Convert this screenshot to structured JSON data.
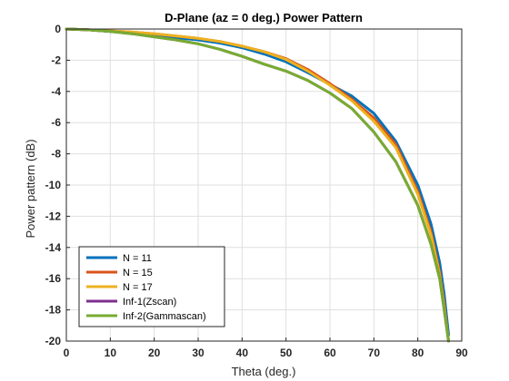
{
  "chart_data": {
    "type": "line",
    "title": "D-Plane (az = 0 deg.) Power Pattern",
    "xlabel": "Theta (deg.)",
    "ylabel": "Power pattern (dB)",
    "xlim": [
      0,
      90
    ],
    "ylim": [
      -20,
      0
    ],
    "xticks": [
      "0",
      "10",
      "20",
      "30",
      "40",
      "50",
      "60",
      "70",
      "80",
      "90"
    ],
    "yticks": [
      "0",
      "-2",
      "-4",
      "-6",
      "-8",
      "-10",
      "-12",
      "-14",
      "-16",
      "-18",
      "-20"
    ],
    "grid": true,
    "legend_position": "bottom-left",
    "series": [
      {
        "name": "N = 11",
        "color": "#0072BD",
        "x": [
          0,
          5,
          10,
          15,
          20,
          25,
          30,
          35,
          40,
          45,
          50,
          55,
          60,
          65,
          70,
          75,
          80,
          83,
          85,
          86,
          87
        ],
        "y": [
          0,
          -0.05,
          -0.15,
          -0.25,
          -0.4,
          -0.55,
          -0.7,
          -0.9,
          -1.2,
          -1.6,
          -2.1,
          -2.8,
          -3.55,
          -4.3,
          -5.4,
          -7.2,
          -10.0,
          -12.5,
          -15.0,
          -17.0,
          -19.6
        ]
      },
      {
        "name": "N = 15",
        "color": "#D95319",
        "x": [
          0,
          5,
          10,
          15,
          20,
          25,
          30,
          35,
          40,
          45,
          50,
          55,
          60,
          65,
          70,
          75,
          80,
          83,
          85,
          86,
          87
        ],
        "y": [
          0,
          -0.05,
          -0.12,
          -0.2,
          -0.3,
          -0.45,
          -0.6,
          -0.8,
          -1.1,
          -1.45,
          -1.9,
          -2.6,
          -3.5,
          -4.5,
          -5.7,
          -7.4,
          -10.4,
          -13.0,
          -15.6,
          -17.6,
          -20.0
        ]
      },
      {
        "name": "N = 17",
        "color": "#EDB120",
        "x": [
          0,
          5,
          10,
          15,
          20,
          25,
          30,
          35,
          40,
          45,
          50,
          55,
          60,
          65,
          70,
          75,
          80,
          83,
          85,
          86,
          87
        ],
        "y": [
          0,
          -0.05,
          -0.12,
          -0.2,
          -0.3,
          -0.45,
          -0.6,
          -0.8,
          -1.1,
          -1.45,
          -1.95,
          -2.7,
          -3.6,
          -4.6,
          -5.9,
          -7.6,
          -10.6,
          -13.2,
          -15.8,
          -17.8,
          -20.0
        ]
      },
      {
        "name": "Inf-1(Zscan)",
        "color": "#7E2F8E",
        "x": [
          0,
          5,
          10,
          15,
          20,
          25,
          30,
          35,
          40,
          45,
          50,
          55,
          60,
          65,
          70,
          75,
          80,
          83,
          85,
          86,
          87
        ],
        "y": [
          0,
          -0.05,
          -0.15,
          -0.3,
          -0.5,
          -0.7,
          -0.95,
          -1.3,
          -1.75,
          -2.25,
          -2.7,
          -3.3,
          -4.1,
          -5.1,
          -6.6,
          -8.5,
          -11.3,
          -13.8,
          -16.0,
          -18.0,
          -20.0
        ]
      },
      {
        "name": "Inf-2(Gammascan)",
        "color": "#77AC30",
        "x": [
          0,
          5,
          10,
          15,
          20,
          25,
          30,
          35,
          40,
          45,
          50,
          55,
          60,
          65,
          70,
          75,
          80,
          83,
          85,
          86,
          87
        ],
        "y": [
          0,
          -0.05,
          -0.15,
          -0.3,
          -0.5,
          -0.7,
          -0.95,
          -1.3,
          -1.75,
          -2.25,
          -2.7,
          -3.3,
          -4.1,
          -5.1,
          -6.6,
          -8.5,
          -11.3,
          -13.8,
          -16.0,
          -18.0,
          -20.0
        ]
      }
    ]
  }
}
